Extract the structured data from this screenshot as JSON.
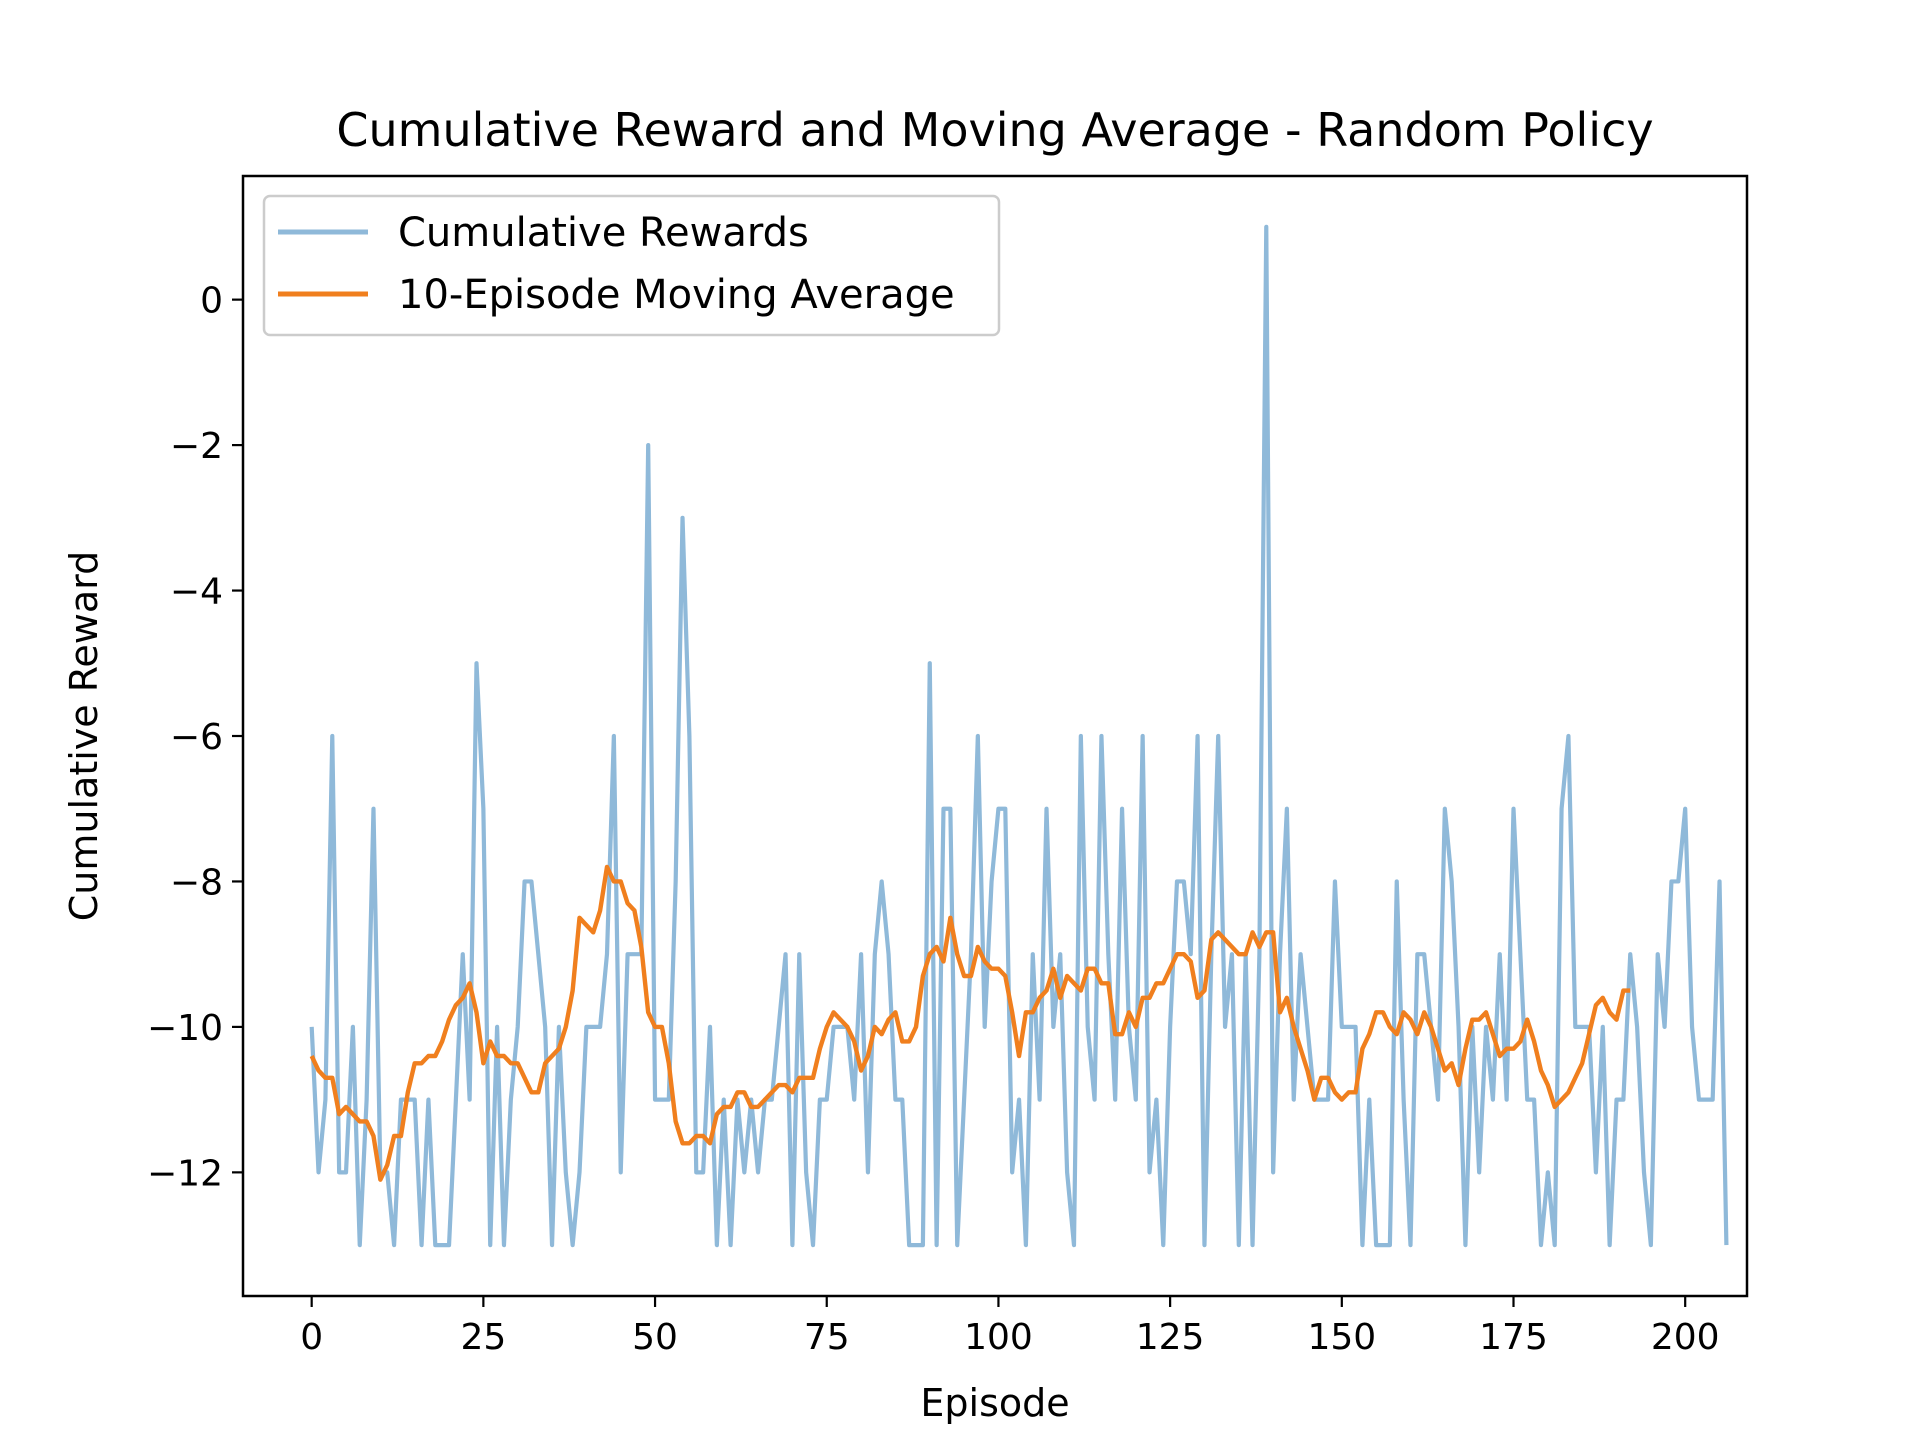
{
  "chart_data": {
    "type": "line",
    "title": "Cumulative Reward and Moving Average - Random Policy",
    "xlabel": "Episode",
    "ylabel": "Cumulative Reward",
    "xlim": [
      -10,
      209
    ],
    "ylim": [
      -13.7,
      1.7
    ],
    "xticks": [
      0,
      25,
      50,
      75,
      100,
      125,
      150,
      175,
      200
    ],
    "xtick_labels": [
      "0",
      "25",
      "50",
      "75",
      "100",
      "125",
      "150",
      "175",
      "200"
    ],
    "yticks": [
      0,
      -2,
      -4,
      -6,
      -8,
      -10,
      -12
    ],
    "ytick_labels": [
      "0",
      "−2",
      "−4",
      "−6",
      "−8",
      "−10",
      "−12"
    ],
    "grid": false,
    "legend_position": "upper-left",
    "series": [
      {
        "name": "Cumulative Rewards",
        "color": "#8fb9d9",
        "x_start": 0,
        "values": [
          -10,
          -12,
          -11,
          -6,
          -12,
          -12,
          -10,
          -13,
          -11,
          -7,
          -12,
          -12,
          -13,
          -11,
          -11,
          -11,
          -13,
          -11,
          -13,
          -13,
          -13,
          -11,
          -9,
          -11,
          -5,
          -7,
          -13,
          -10,
          -13,
          -11,
          -10,
          -8,
          -8,
          -9,
          -10,
          -13,
          -10,
          -12,
          -13,
          -12,
          -10,
          -10,
          -10,
          -9,
          -6,
          -12,
          -9,
          -9,
          -9,
          -2,
          -11,
          -11,
          -11,
          -8,
          -3,
          -6,
          -12,
          -12,
          -10,
          -13,
          -11,
          -13,
          -11,
          -12,
          -11,
          -12,
          -11,
          -11,
          -10,
          -9,
          -13,
          -9,
          -12,
          -13,
          -11,
          -11,
          -10,
          -10,
          -10,
          -11,
          -9,
          -12,
          -9,
          -8,
          -9,
          -11,
          -11,
          -13,
          -13,
          -13,
          -5,
          -13,
          -7,
          -7,
          -13,
          -11,
          -9,
          -6,
          -10,
          -8,
          -7,
          -7,
          -12,
          -11,
          -13,
          -9,
          -11,
          -7,
          -10,
          -9,
          -12,
          -13,
          -6,
          -10,
          -11,
          -6,
          -9,
          -11,
          -7,
          -10,
          -11,
          -6,
          -12,
          -11,
          -13,
          -10,
          -8,
          -8,
          -9,
          -6,
          -13,
          -9,
          -6,
          -10,
          -9,
          -13,
          -9,
          -13,
          -9,
          1,
          -12,
          -9,
          -7,
          -11,
          -9,
          -10,
          -11,
          -11,
          -11,
          -8,
          -10,
          -10,
          -10,
          -13,
          -11,
          -13,
          -13,
          -13,
          -8,
          -11,
          -13,
          -9,
          -9,
          -10,
          -11,
          -7,
          -8,
          -10,
          -13,
          -10,
          -12,
          -10,
          -11,
          -9,
          -11,
          -7,
          -9,
          -11,
          -11,
          -13,
          -12,
          -13,
          -7,
          -6,
          -10,
          -10,
          -10,
          -12,
          -10,
          -13,
          -11,
          -11,
          -9,
          -10,
          -12,
          -13,
          -9,
          -10,
          -8,
          -8,
          -7,
          -10,
          -11,
          -11,
          -11,
          -8,
          -13
        ]
      },
      {
        "name": "10-Episode Moving Average",
        "color": "#f07f1e",
        "x_start": 0,
        "values": [
          -10.4,
          -10.6,
          -10.7,
          -10.7,
          -11.2,
          -11.1,
          -11.2,
          -11.3,
          -11.3,
          -11.5,
          -12.1,
          -11.9,
          -11.5,
          -11.5,
          -10.9,
          -10.5,
          -10.5,
          -10.4,
          -10.4,
          -10.2,
          -9.9,
          -9.7,
          -9.6,
          -9.4,
          -9.8,
          -10.5,
          -10.2,
          -10.4,
          -10.4,
          -10.5,
          -10.5,
          -10.7,
          -10.9,
          -10.9,
          -10.5,
          -10.4,
          -10.3,
          -10.0,
          -9.5,
          -8.5,
          -8.6,
          -8.7,
          -8.4,
          -7.8,
          -8.0,
          -8.0,
          -8.3,
          -8.4,
          -8.9,
          -9.8,
          -10.0,
          -10.0,
          -10.5,
          -11.3,
          -11.6,
          -11.6,
          -11.5,
          -11.5,
          -11.6,
          -11.2,
          -11.1,
          -11.1,
          -10.9,
          -10.9,
          -11.1,
          -11.1,
          -11.0,
          -10.9,
          -10.8,
          -10.8,
          -10.9,
          -10.7,
          -10.7,
          -10.7,
          -10.3,
          -10.0,
          -9.8,
          -9.9,
          -10.0,
          -10.2,
          -10.6,
          -10.4,
          -10.0,
          -10.1,
          -9.9,
          -9.8,
          -10.2,
          -10.2,
          -10.0,
          -9.3,
          -9.0,
          -8.9,
          -9.1,
          -8.5,
          -9.0,
          -9.3,
          -9.3,
          -8.9,
          -9.1,
          -9.2,
          -9.2,
          -9.3,
          -9.8,
          -10.4,
          -9.8,
          -9.8,
          -9.6,
          -9.5,
          -9.2,
          -9.6,
          -9.3,
          -9.4,
          -9.5,
          -9.2,
          -9.2,
          -9.4,
          -9.4,
          -10.1,
          -10.1,
          -9.8,
          -10.0,
          -9.6,
          -9.6,
          -9.4,
          -9.4,
          -9.2,
          -9.0,
          -9.0,
          -9.1,
          -9.6,
          -9.5,
          -8.8,
          -8.7,
          -8.8,
          -8.9,
          -9.0,
          -9.0,
          -8.7,
          -8.9,
          -8.7,
          -8.7,
          -9.8,
          -9.6,
          -10.0,
          -10.3,
          -10.6,
          -11.0,
          -10.7,
          -10.7,
          -10.9,
          -11.0,
          -10.9,
          -10.9,
          -10.3,
          -10.1,
          -9.8,
          -9.8,
          -10.0,
          -10.1,
          -9.8,
          -9.9,
          -10.1,
          -9.8,
          -10.0,
          -10.3,
          -10.6,
          -10.5,
          -10.8,
          -10.3,
          -9.9,
          -9.9,
          -9.8,
          -10.1,
          -10.4,
          -10.3,
          -10.3,
          -10.2,
          -9.9,
          -10.2,
          -10.6,
          -10.8,
          -11.1,
          -11.0,
          -10.9,
          -10.7,
          -10.5,
          -10.1,
          -9.7,
          -9.6,
          -9.8,
          -9.9,
          -9.5,
          -9.5
        ]
      }
    ]
  }
}
